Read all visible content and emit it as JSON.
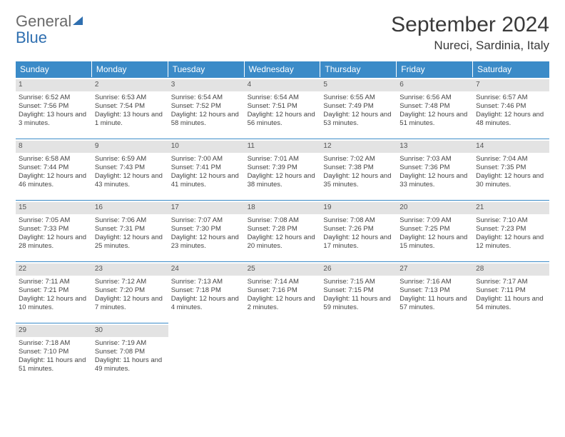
{
  "logo": {
    "general": "General",
    "blue": "Blue"
  },
  "title": "September 2024",
  "subtitle": "Nureci, Sardinia, Italy",
  "colors": {
    "header_bg": "#3b8bc8",
    "header_text": "#ffffff",
    "daynum_bg": "#e3e3e3",
    "text": "#444444",
    "logo_blue": "#2f6fb0"
  },
  "layout": {
    "columns": 7,
    "rows": 6,
    "daynum_fontsize": 10,
    "body_fontsize": 9.5,
    "header_fontsize": 12,
    "title_fontsize": 30,
    "subtitle_fontsize": 17
  },
  "week_headers": [
    "Sunday",
    "Monday",
    "Tuesday",
    "Wednesday",
    "Thursday",
    "Friday",
    "Saturday"
  ],
  "days": [
    {
      "n": "1",
      "sr": "Sunrise: 6:52 AM",
      "ss": "Sunset: 7:56 PM",
      "dl": "Daylight: 13 hours and 3 minutes."
    },
    {
      "n": "2",
      "sr": "Sunrise: 6:53 AM",
      "ss": "Sunset: 7:54 PM",
      "dl": "Daylight: 13 hours and 1 minute."
    },
    {
      "n": "3",
      "sr": "Sunrise: 6:54 AM",
      "ss": "Sunset: 7:52 PM",
      "dl": "Daylight: 12 hours and 58 minutes."
    },
    {
      "n": "4",
      "sr": "Sunrise: 6:54 AM",
      "ss": "Sunset: 7:51 PM",
      "dl": "Daylight: 12 hours and 56 minutes."
    },
    {
      "n": "5",
      "sr": "Sunrise: 6:55 AM",
      "ss": "Sunset: 7:49 PM",
      "dl": "Daylight: 12 hours and 53 minutes."
    },
    {
      "n": "6",
      "sr": "Sunrise: 6:56 AM",
      "ss": "Sunset: 7:48 PM",
      "dl": "Daylight: 12 hours and 51 minutes."
    },
    {
      "n": "7",
      "sr": "Sunrise: 6:57 AM",
      "ss": "Sunset: 7:46 PM",
      "dl": "Daylight: 12 hours and 48 minutes."
    },
    {
      "n": "8",
      "sr": "Sunrise: 6:58 AM",
      "ss": "Sunset: 7:44 PM",
      "dl": "Daylight: 12 hours and 46 minutes."
    },
    {
      "n": "9",
      "sr": "Sunrise: 6:59 AM",
      "ss": "Sunset: 7:43 PM",
      "dl": "Daylight: 12 hours and 43 minutes."
    },
    {
      "n": "10",
      "sr": "Sunrise: 7:00 AM",
      "ss": "Sunset: 7:41 PM",
      "dl": "Daylight: 12 hours and 41 minutes."
    },
    {
      "n": "11",
      "sr": "Sunrise: 7:01 AM",
      "ss": "Sunset: 7:39 PM",
      "dl": "Daylight: 12 hours and 38 minutes."
    },
    {
      "n": "12",
      "sr": "Sunrise: 7:02 AM",
      "ss": "Sunset: 7:38 PM",
      "dl": "Daylight: 12 hours and 35 minutes."
    },
    {
      "n": "13",
      "sr": "Sunrise: 7:03 AM",
      "ss": "Sunset: 7:36 PM",
      "dl": "Daylight: 12 hours and 33 minutes."
    },
    {
      "n": "14",
      "sr": "Sunrise: 7:04 AM",
      "ss": "Sunset: 7:35 PM",
      "dl": "Daylight: 12 hours and 30 minutes."
    },
    {
      "n": "15",
      "sr": "Sunrise: 7:05 AM",
      "ss": "Sunset: 7:33 PM",
      "dl": "Daylight: 12 hours and 28 minutes."
    },
    {
      "n": "16",
      "sr": "Sunrise: 7:06 AM",
      "ss": "Sunset: 7:31 PM",
      "dl": "Daylight: 12 hours and 25 minutes."
    },
    {
      "n": "17",
      "sr": "Sunrise: 7:07 AM",
      "ss": "Sunset: 7:30 PM",
      "dl": "Daylight: 12 hours and 23 minutes."
    },
    {
      "n": "18",
      "sr": "Sunrise: 7:08 AM",
      "ss": "Sunset: 7:28 PM",
      "dl": "Daylight: 12 hours and 20 minutes."
    },
    {
      "n": "19",
      "sr": "Sunrise: 7:08 AM",
      "ss": "Sunset: 7:26 PM",
      "dl": "Daylight: 12 hours and 17 minutes."
    },
    {
      "n": "20",
      "sr": "Sunrise: 7:09 AM",
      "ss": "Sunset: 7:25 PM",
      "dl": "Daylight: 12 hours and 15 minutes."
    },
    {
      "n": "21",
      "sr": "Sunrise: 7:10 AM",
      "ss": "Sunset: 7:23 PM",
      "dl": "Daylight: 12 hours and 12 minutes."
    },
    {
      "n": "22",
      "sr": "Sunrise: 7:11 AM",
      "ss": "Sunset: 7:21 PM",
      "dl": "Daylight: 12 hours and 10 minutes."
    },
    {
      "n": "23",
      "sr": "Sunrise: 7:12 AM",
      "ss": "Sunset: 7:20 PM",
      "dl": "Daylight: 12 hours and 7 minutes."
    },
    {
      "n": "24",
      "sr": "Sunrise: 7:13 AM",
      "ss": "Sunset: 7:18 PM",
      "dl": "Daylight: 12 hours and 4 minutes."
    },
    {
      "n": "25",
      "sr": "Sunrise: 7:14 AM",
      "ss": "Sunset: 7:16 PM",
      "dl": "Daylight: 12 hours and 2 minutes."
    },
    {
      "n": "26",
      "sr": "Sunrise: 7:15 AM",
      "ss": "Sunset: 7:15 PM",
      "dl": "Daylight: 11 hours and 59 minutes."
    },
    {
      "n": "27",
      "sr": "Sunrise: 7:16 AM",
      "ss": "Sunset: 7:13 PM",
      "dl": "Daylight: 11 hours and 57 minutes."
    },
    {
      "n": "28",
      "sr": "Sunrise: 7:17 AM",
      "ss": "Sunset: 7:11 PM",
      "dl": "Daylight: 11 hours and 54 minutes."
    },
    {
      "n": "29",
      "sr": "Sunrise: 7:18 AM",
      "ss": "Sunset: 7:10 PM",
      "dl": "Daylight: 11 hours and 51 minutes."
    },
    {
      "n": "30",
      "sr": "Sunrise: 7:19 AM",
      "ss": "Sunset: 7:08 PM",
      "dl": "Daylight: 11 hours and 49 minutes."
    }
  ]
}
